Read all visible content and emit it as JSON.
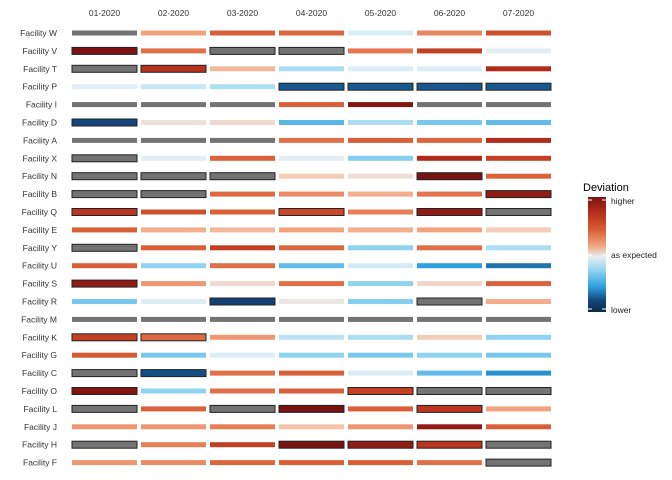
{
  "chart_data": {
    "type": "heatmap",
    "title": "",
    "xlabel": "",
    "ylabel": "",
    "columns": [
      "01-2020",
      "02-2020",
      "03-2020",
      "04-2020",
      "05-2020",
      "06-2020",
      "07-2020"
    ],
    "rows": [
      "Facility W",
      "Facility V",
      "Facility T",
      "Facility P",
      "Facility I",
      "Facility D",
      "Facility A",
      "Facility X",
      "Facility N",
      "Facility B",
      "Facility Q",
      "Facility E",
      "Facility Y",
      "Facility U",
      "Facility S",
      "Facility R",
      "Facility M",
      "Facility K",
      "Facility G",
      "Facility C",
      "Facility O",
      "Facility L",
      "Facility J",
      "Facility H",
      "Facility F"
    ],
    "value_scale": "deviation from expected: -1 = lower, 0 = as expected, 1 = higher; null = no data (grey)",
    "values": [
      [
        null,
        0.4,
        0.72,
        0.68,
        -0.1,
        0.52,
        0.78
      ],
      [
        1.0,
        0.62,
        null,
        null,
        0.58,
        0.82,
        -0.05
      ],
      [
        null,
        0.86,
        0.3,
        -0.3,
        -0.1,
        -0.1,
        0.88
      ],
      [
        -0.05,
        -0.2,
        -0.3,
        -0.78,
        -0.78,
        -0.78,
        -0.78
      ],
      [
        null,
        null,
        null,
        0.72,
        0.98,
        null,
        null
      ],
      [
        -0.82,
        0.08,
        0.12,
        -0.52,
        -0.3,
        -0.45,
        -0.5
      ],
      [
        null,
        null,
        null,
        0.62,
        0.72,
        0.68,
        0.88
      ],
      [
        null,
        -0.05,
        0.7,
        -0.05,
        -0.42,
        0.88,
        0.82
      ],
      [
        null,
        null,
        null,
        0.2,
        0.1,
        1.0,
        0.7
      ],
      [
        null,
        null,
        0.65,
        0.5,
        0.35,
        0.6,
        0.95
      ],
      [
        0.85,
        0.78,
        0.72,
        0.8,
        0.55,
        0.95,
        null
      ],
      [
        0.72,
        0.35,
        0.3,
        0.4,
        0.35,
        0.4,
        0.2
      ],
      [
        null,
        0.72,
        0.82,
        0.68,
        -0.4,
        0.62,
        -0.3
      ],
      [
        0.72,
        -0.4,
        0.62,
        -0.5,
        -0.15,
        -0.62,
        -0.72
      ],
      [
        0.95,
        0.45,
        0.12,
        0.62,
        -0.4,
        0.15,
        0.7
      ],
      [
        -0.45,
        -0.1,
        -0.85,
        0.05,
        -0.42,
        null,
        0.35
      ],
      [
        null,
        null,
        null,
        null,
        null,
        null,
        null
      ],
      [
        0.82,
        0.65,
        0.45,
        -0.25,
        -0.3,
        0.2,
        -0.4
      ],
      [
        0.75,
        -0.45,
        -0.1,
        -0.4,
        -0.45,
        -0.4,
        -0.45
      ],
      [
        null,
        -0.8,
        0.62,
        0.72,
        -0.1,
        -0.5,
        -0.65
      ],
      [
        0.98,
        -0.4,
        0.62,
        0.72,
        0.82,
        null,
        null
      ],
      [
        null,
        0.7,
        null,
        1.0,
        0.72,
        0.85,
        0.4
      ],
      [
        0.45,
        0.45,
        0.55,
        0.25,
        0.45,
        0.95,
        0.72
      ],
      [
        null,
        0.55,
        0.82,
        1.0,
        0.95,
        0.85,
        null
      ],
      [
        0.45,
        0.5,
        0.68,
        0.72,
        0.72,
        0.62,
        null
      ]
    ],
    "outlined": [
      [
        false,
        false,
        false,
        false,
        false,
        false,
        false
      ],
      [
        true,
        false,
        true,
        true,
        false,
        false,
        false
      ],
      [
        true,
        true,
        false,
        false,
        false,
        false,
        false
      ],
      [
        false,
        false,
        false,
        true,
        true,
        true,
        true
      ],
      [
        false,
        false,
        false,
        false,
        false,
        false,
        false
      ],
      [
        true,
        false,
        false,
        false,
        false,
        false,
        false
      ],
      [
        false,
        false,
        false,
        false,
        false,
        false,
        false
      ],
      [
        true,
        false,
        false,
        false,
        false,
        false,
        false
      ],
      [
        true,
        true,
        true,
        false,
        false,
        true,
        false
      ],
      [
        true,
        true,
        false,
        false,
        false,
        false,
        true
      ],
      [
        true,
        false,
        false,
        true,
        false,
        true,
        true
      ],
      [
        false,
        false,
        false,
        false,
        false,
        false,
        false
      ],
      [
        true,
        false,
        false,
        false,
        false,
        false,
        false
      ],
      [
        false,
        false,
        false,
        false,
        false,
        false,
        false
      ],
      [
        true,
        false,
        false,
        false,
        false,
        false,
        false
      ],
      [
        false,
        false,
        true,
        false,
        false,
        true,
        false
      ],
      [
        false,
        false,
        false,
        false,
        false,
        false,
        false
      ],
      [
        true,
        true,
        false,
        false,
        false,
        false,
        false
      ],
      [
        false,
        false,
        false,
        false,
        false,
        false,
        false
      ],
      [
        true,
        true,
        false,
        false,
        false,
        false,
        false
      ],
      [
        true,
        false,
        false,
        false,
        true,
        true,
        true
      ],
      [
        true,
        false,
        true,
        true,
        false,
        true,
        false
      ],
      [
        false,
        false,
        false,
        false,
        false,
        false,
        false
      ],
      [
        true,
        false,
        false,
        true,
        true,
        true,
        true
      ],
      [
        false,
        false,
        false,
        false,
        false,
        false,
        true
      ]
    ],
    "missing_color": "#737373",
    "legend": {
      "title": "Deviation",
      "labels": [
        "higher",
        "as expected",
        "lower"
      ],
      "placement": "right",
      "gradient": [
        "#7a1212",
        "#b22a1a",
        "#d65d32",
        "#f2a37e",
        "#e9eef2",
        "#8fd3f0",
        "#2f9fe0",
        "#13467a",
        "#0b2a45"
      ]
    },
    "grid": false
  }
}
